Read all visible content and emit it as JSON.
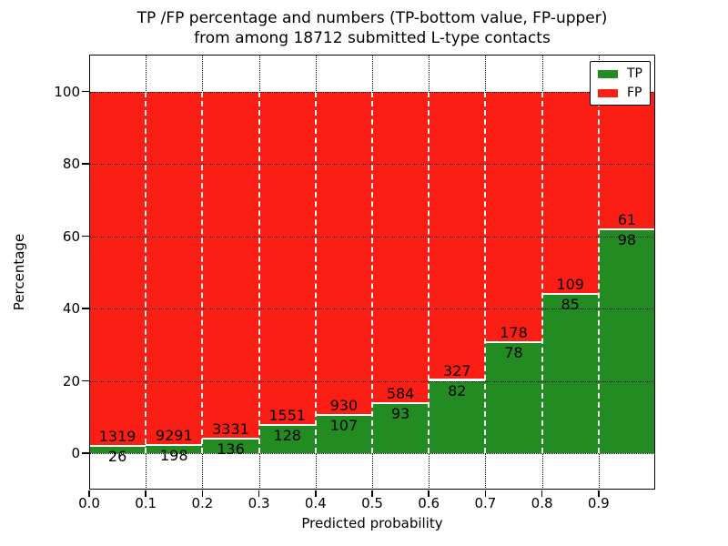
{
  "header": {
    "title_line1": "TP /FP percentage and numbers (TP-bottom value, FP-upper)",
    "title_line2": "from among 18712 submitted L-type contacts"
  },
  "chart_data": {
    "type": "bar",
    "variant": "stacked-100-percent",
    "title": "TP /FP percentage and numbers (TP-bottom value, FP-upper) from among 18712 submitted L-type contacts",
    "xlabel": "Predicted probability",
    "ylabel": "Percentage",
    "total_submitted_contacts": 18712,
    "bin_width": 0.1,
    "categories": [
      "0.0-0.1",
      "0.1-0.2",
      "0.2-0.3",
      "0.3-0.4",
      "0.4-0.5",
      "0.5-0.6",
      "0.6-0.7",
      "0.7-0.8",
      "0.8-0.9",
      "0.9-1.0"
    ],
    "x_tick_labels": [
      "0.0",
      "0.1",
      "0.2",
      "0.3",
      "0.4",
      "0.5",
      "0.6",
      "0.7",
      "0.8",
      "0.9"
    ],
    "y_ticks": [
      0,
      20,
      40,
      60,
      80,
      100
    ],
    "xlim": [
      0.0,
      1.0
    ],
    "ylim": [
      -10,
      110.2
    ],
    "grid": true,
    "legend": {
      "position": "upper right",
      "entries": [
        "TP",
        "FP"
      ]
    },
    "series": [
      {
        "name": "TP",
        "color": "#228B22",
        "counts": [
          26,
          198,
          136,
          128,
          107,
          93,
          82,
          78,
          85,
          98
        ]
      },
      {
        "name": "FP",
        "color": "#FA1E14",
        "counts": [
          1319,
          9291,
          3331,
          1551,
          930,
          584,
          327,
          178,
          109,
          61
        ]
      }
    ],
    "tp_percent_per_bin": [
      1.9,
      2.1,
      3.9,
      7.6,
      10.3,
      13.7,
      20.0,
      30.5,
      43.8,
      61.6
    ]
  },
  "colors": {
    "tp_green": "#228B22",
    "fp_red": "#FA1E14",
    "background": "#FFFFFF",
    "text": "#000000",
    "grid": "#000000",
    "bar_boundary_dash": "#FFFFFF"
  }
}
